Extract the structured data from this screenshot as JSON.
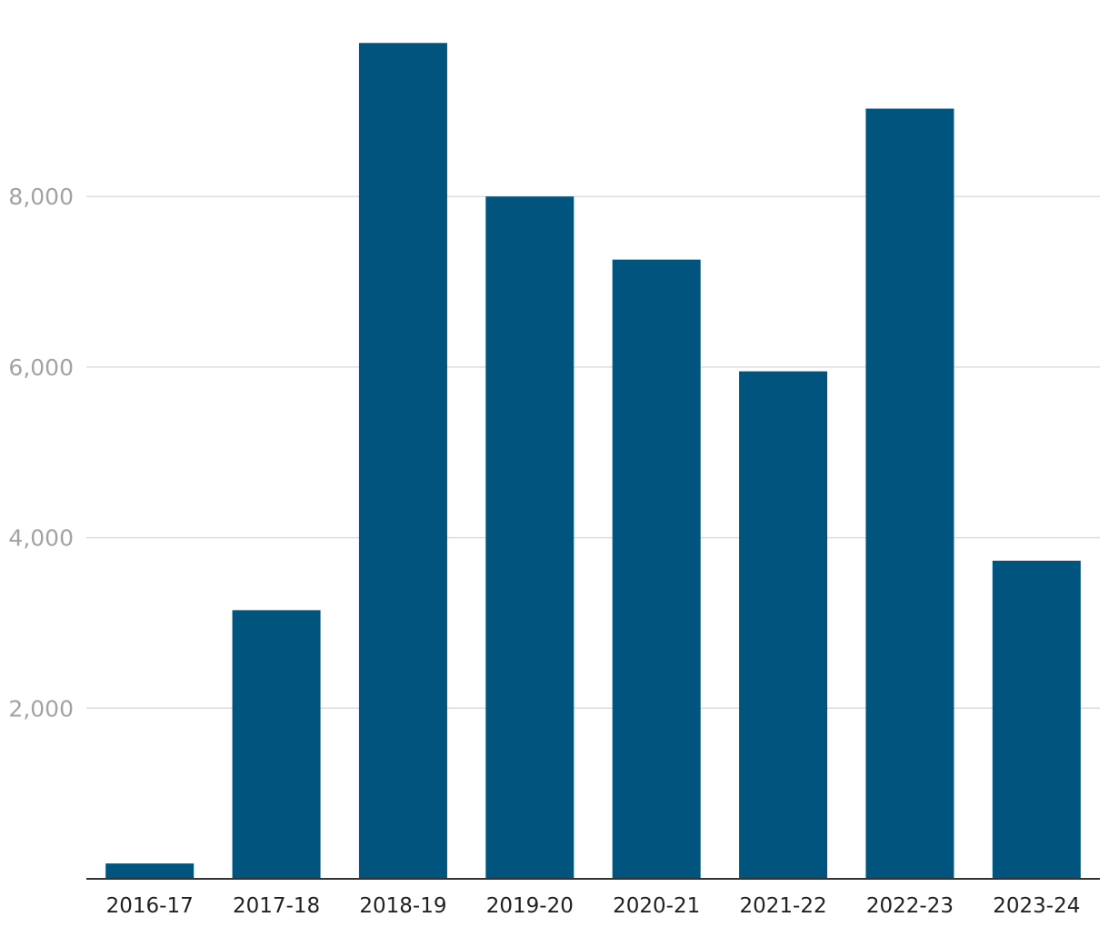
{
  "chart_data": {
    "type": "bar",
    "title": "",
    "xlabel": "",
    "ylabel": "",
    "categories": [
      "2016-17",
      "2017-18",
      "2018-19",
      "2019-20",
      "2020-21",
      "2021-22",
      "2022-23",
      "2023-24"
    ],
    "values": [
      180,
      3150,
      9800,
      8000,
      7260,
      5950,
      9030,
      3730
    ],
    "ylim": [
      0,
      10300
    ],
    "yticks": [
      2000,
      4000,
      6000,
      8000
    ],
    "ytick_labels": [
      "2,000",
      "4,000",
      "6,000",
      "8,000"
    ],
    "grid": true,
    "legend": "none",
    "colors": {
      "bar": "#00547e",
      "grid": "#dddddd",
      "axis": "#333333",
      "ytick_text": "#a3a3a3",
      "xtick_text": "#222222"
    }
  }
}
